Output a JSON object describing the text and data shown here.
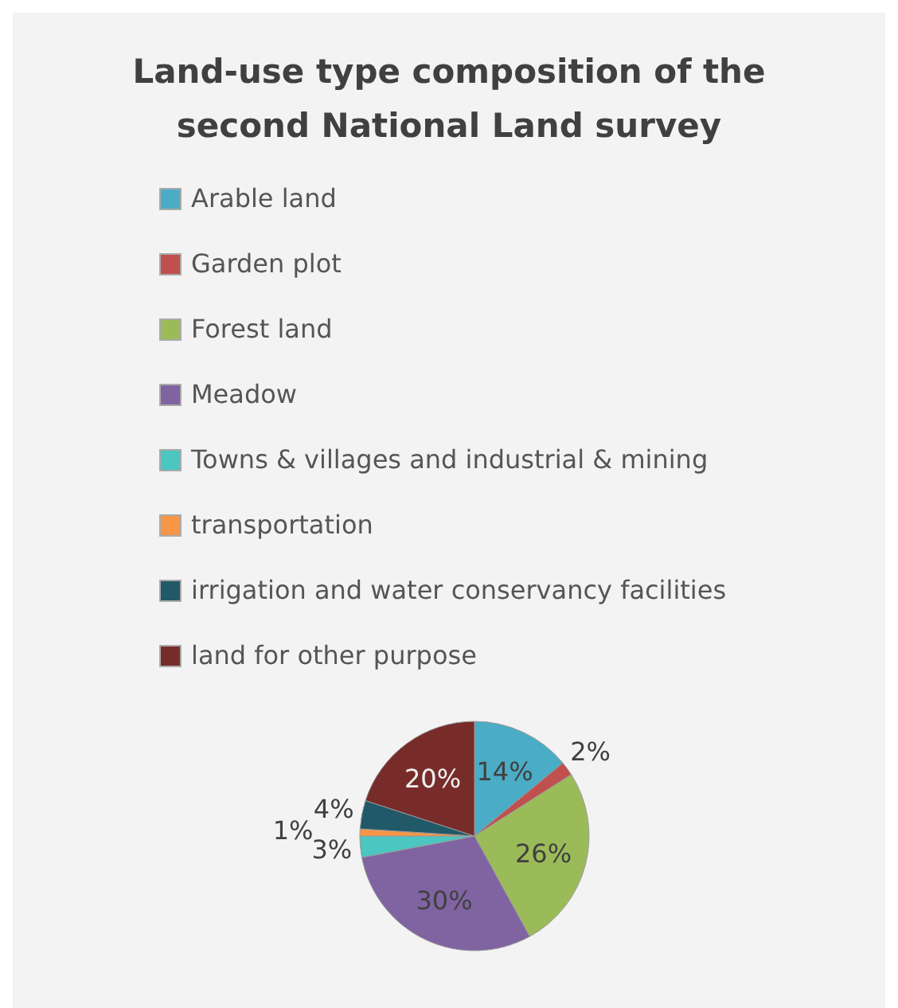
{
  "chart_data": {
    "type": "pie",
    "title": "Land-use type composition of the second National Land survey",
    "categories": [
      "Arable land",
      "Garden plot",
      "Forest land",
      "Meadow",
      "Towns & villages and industrial & mining",
      "transportation",
      "irrigation and water conservancy facilities",
      "land for other purpose"
    ],
    "values": [
      14,
      2,
      26,
      30,
      3,
      1,
      4,
      20
    ],
    "colors": [
      "#4bacc6",
      "#c0504d",
      "#9bbb59",
      "#8064a2",
      "#4bc6c1",
      "#f79646",
      "#215968",
      "#772c2a"
    ],
    "value_labels": [
      "14%",
      "2%",
      "26%",
      "30%",
      "3%",
      "1%",
      "4%",
      "20%"
    ],
    "legend": "top"
  }
}
